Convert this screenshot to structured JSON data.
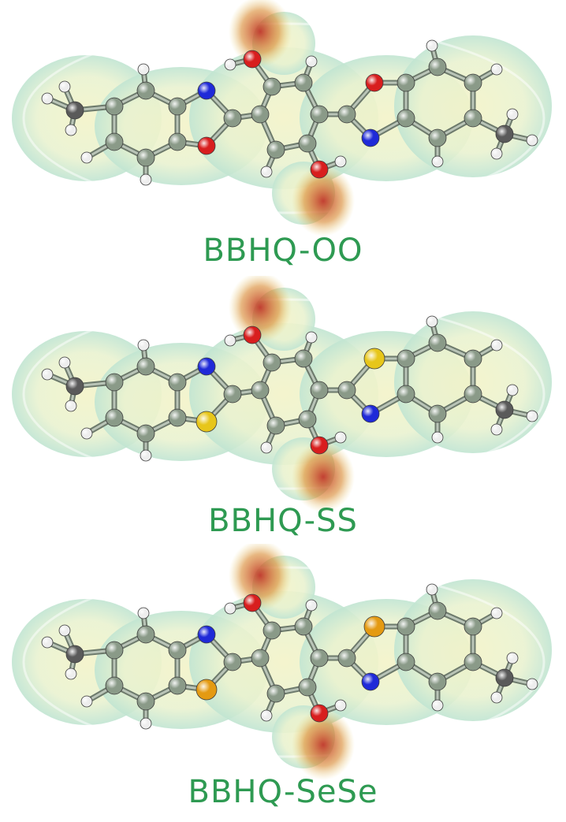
{
  "figure": {
    "molecules": [
      {
        "label": "BBHQ-OO",
        "heteroatom": "O",
        "heteroatom_color": "#d81e1e"
      },
      {
        "label": "BBHQ-SS",
        "heteroatom": "S",
        "heteroatom_color": "#e7c61a"
      },
      {
        "label": "BBHQ-SeSe",
        "heteroatom": "Se",
        "heteroatom_color": "#e49a12"
      }
    ],
    "colors": {
      "label": "#2e9a52",
      "carbon": "#8a9a88",
      "hydrogen": "#eeeeee",
      "oxygen": "#d81e1e",
      "nitrogen": "#1f2ad8",
      "methyl_carbon": "#5a5a5a",
      "surface_outer": "#a9ddd3",
      "surface_inner": "#e9f2d0",
      "negative_region": "#c0362a"
    }
  }
}
